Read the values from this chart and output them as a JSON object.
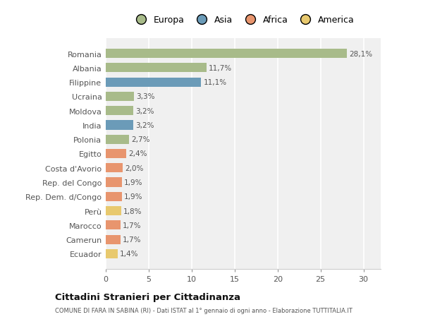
{
  "countries": [
    "Romania",
    "Albania",
    "Filippine",
    "Ucraina",
    "Moldova",
    "India",
    "Polonia",
    "Egitto",
    "Costa d'Avorio",
    "Rep. del Congo",
    "Rep. Dem. d/Congo",
    "Perù",
    "Marocco",
    "Camerun",
    "Ecuador"
  ],
  "values": [
    28.1,
    11.7,
    11.1,
    3.3,
    3.2,
    3.2,
    2.7,
    2.4,
    2.0,
    1.9,
    1.9,
    1.8,
    1.7,
    1.7,
    1.4
  ],
  "labels": [
    "28,1%",
    "11,7%",
    "11,1%",
    "3,3%",
    "3,2%",
    "3,2%",
    "2,7%",
    "2,4%",
    "2,0%",
    "1,9%",
    "1,9%",
    "1,8%",
    "1,7%",
    "1,7%",
    "1,4%"
  ],
  "continents": [
    "Europa",
    "Europa",
    "Asia",
    "Europa",
    "Europa",
    "Asia",
    "Europa",
    "Africa",
    "Africa",
    "Africa",
    "Africa",
    "America",
    "Africa",
    "Africa",
    "America"
  ],
  "colors": {
    "Europa": "#a8bb8a",
    "Asia": "#6b9bb8",
    "Africa": "#e8956e",
    "America": "#e8c96e"
  },
  "legend_order": [
    "Europa",
    "Asia",
    "Africa",
    "America"
  ],
  "title": "Cittadini Stranieri per Cittadinanza",
  "subtitle": "COMUNE DI FARA IN SABINA (RI) - Dati ISTAT al 1° gennaio di ogni anno - Elaborazione TUTTITALIA.IT",
  "xlim": [
    0,
    32
  ],
  "xticks": [
    0,
    5,
    10,
    15,
    20,
    25,
    30
  ],
  "bg_color": "#ffffff",
  "plot_bg_color": "#f0f0f0",
  "grid_color": "#ffffff"
}
